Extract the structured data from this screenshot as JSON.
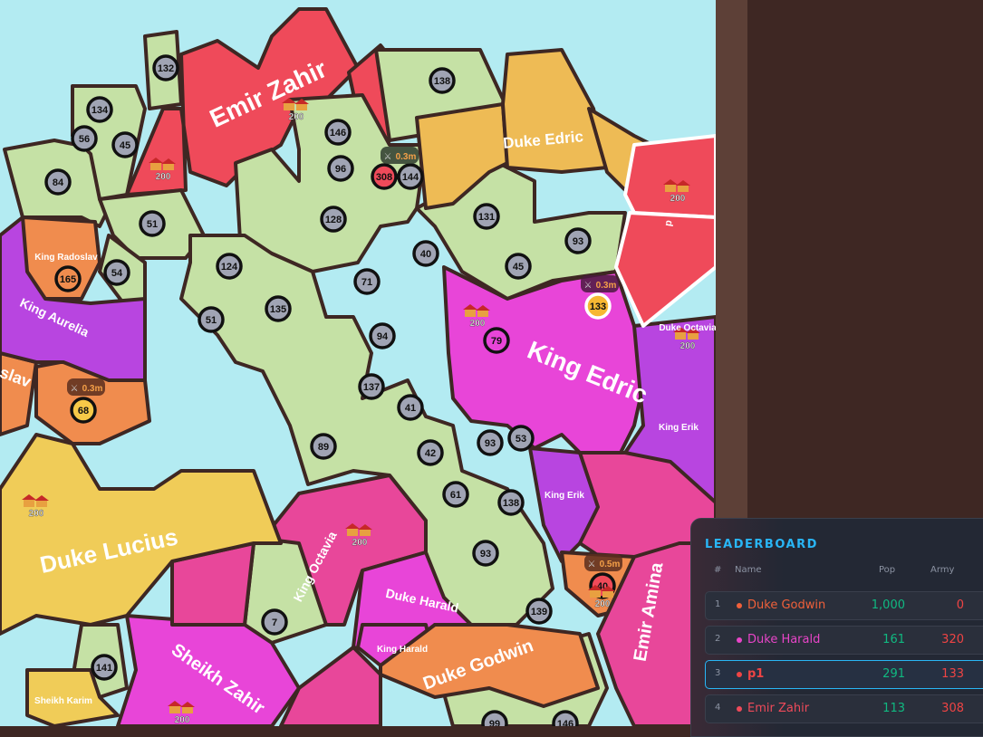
{
  "colors": {
    "water": "#b3ebf2",
    "border": "#3e2723",
    "green": "#c5e1a5",
    "red": "#ef4a5a",
    "orange": "#f08c4e",
    "yellow": "#f0cc58",
    "gold": "#eebb55",
    "magenta": "#e845d8",
    "purple": "#b845e0",
    "pink": "#e8479a"
  },
  "map": {
    "units": [
      "132",
      "134",
      "56",
      "45",
      "84",
      "51",
      "146",
      "96",
      "308",
      "144",
      "138",
      "128",
      "131",
      "40",
      "93",
      "45",
      "124",
      "54",
      "165",
      "71",
      "135",
      "51",
      "94",
      "79",
      "133",
      "137",
      "41",
      "68",
      "89",
      "42",
      "93",
      "53",
      "61",
      "138",
      "93",
      "7",
      "139",
      "40",
      "141",
      "99",
      "146"
    ],
    "labels": [
      "Emir Zahir",
      "Duke Edric",
      "King Radoslav",
      "King Aurelia",
      "slav",
      "King Edric",
      "Duke Octavia",
      "King Erik",
      "King Erik",
      "Duke Lucius",
      "King Octavia",
      "Duke Harald",
      "King Harald",
      "Duke Godwin",
      "Emir Amina",
      "Sheikh Zahir",
      "Sheikh Karim",
      "p"
    ],
    "city_pop": "200",
    "attacks": [
      "0.3m",
      "0.3m",
      "0.3m",
      "0.5m"
    ]
  },
  "leaderboard": {
    "title": "LEADERBOARD",
    "headers": {
      "rank": "#",
      "name": "Name",
      "pop": "Pop",
      "army": "Army"
    },
    "rows": [
      {
        "rank": "1",
        "name": "Duke Godwin",
        "pop": "1,000",
        "army": "0",
        "color": "#f0603a"
      },
      {
        "rank": "2",
        "name": "Duke Harald",
        "pop": "161",
        "army": "320",
        "color": "#e845c8"
      },
      {
        "rank": "3",
        "name": "p1",
        "pop": "291",
        "army": "133",
        "color": "#ef4444",
        "me": true
      },
      {
        "rank": "4",
        "name": "Emir Zahir",
        "pop": "113",
        "army": "308",
        "color": "#ef4a5a"
      }
    ]
  }
}
